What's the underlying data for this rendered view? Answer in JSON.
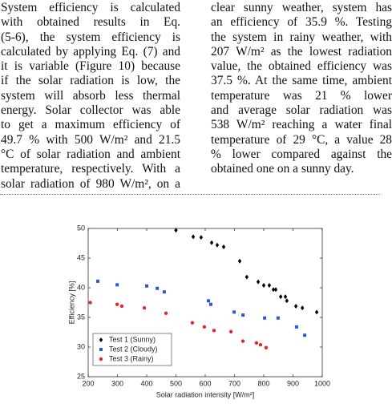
{
  "paragraphs": {
    "left": [
      "System efficiency is calculated",
      "with obtained results in Eq.",
      "(5-6), the system efficiency is",
      "calculated by applying Eq. (7) and",
      "it is variable (Figure 10) because",
      "if the solar radiation is low, the",
      "system will absorb less thermal",
      "energy. Solar collector was able",
      "to get a maximum efficiency of",
      "49.7 % with 500 W/m² and 21.5",
      "°C of solar radiation and ambient",
      "temperature, respectively. With a",
      "solar radiation of 980 W/m², on a"
    ],
    "right": [
      "clear sunny weather, system has",
      "an efficiency of 35.9 %. Testing",
      "the system in rainy weather, with",
      "207 W/m² as the lowest radiation",
      "value, the obtained efficiency was",
      "37.5 %. At the same time, ambient",
      "temperature was 21 % lower",
      "and average solar radiation was",
      "538 W/m² reaching a water final",
      "temperature of 29 °C, a value 28",
      "% lower compared against the",
      "obtained one on a sunny day."
    ]
  },
  "chart_data": {
    "type": "scatter",
    "x_label": "Solar radiation intensity [W/m²]",
    "y_label": "Efficiency [%]",
    "xlim": [
      200,
      1000
    ],
    "xticks": [
      200,
      300,
      400,
      500,
      600,
      700,
      800,
      900,
      1000
    ],
    "ylim": [
      25,
      50
    ],
    "yticks": [
      25,
      30,
      35,
      40,
      45,
      50
    ],
    "legend": "lower left",
    "series": [
      {
        "name": "Test 1 (Sunny)",
        "color": "#000000",
        "marker": "diamond",
        "x": [
          500,
          559,
          586,
          622,
          641,
          663,
          718,
          742,
          781,
          800,
          819,
          833,
          841,
          858,
          874,
          879,
          910,
          932,
          981
        ],
        "values": [
          49.7,
          48.6,
          48.5,
          47.6,
          47.2,
          46.9,
          44.5,
          41.8,
          41,
          40.4,
          40.4,
          39.7,
          39.7,
          38.5,
          38.5,
          37.8,
          36.9,
          36.6,
          35.9
        ]
      },
      {
        "name": "Test 2 (Cloudy)",
        "color": "#2f54d8",
        "marker": "square",
        "x": [
          233,
          299,
          400,
          436,
          460,
          611,
          619,
          699,
          729,
          803,
          849,
          912,
          940
        ],
        "values": [
          41.1,
          40.5,
          40.3,
          39.9,
          39.3,
          37.8,
          37.2,
          35.9,
          35.4,
          34.9,
          34.9,
          33.4,
          32
        ]
      },
      {
        "name": "Test 3 (Rainy)",
        "color": "#e0292b",
        "marker": "circle",
        "x": [
          207,
          299,
          315,
          392,
          466,
          556,
          597,
          630,
          688,
          729,
          775,
          789,
          808
        ],
        "values": [
          37.5,
          37.2,
          36.9,
          36.6,
          35.7,
          34.1,
          33.4,
          32.8,
          32.6,
          31,
          30.7,
          30.4,
          29.9
        ]
      }
    ]
  }
}
